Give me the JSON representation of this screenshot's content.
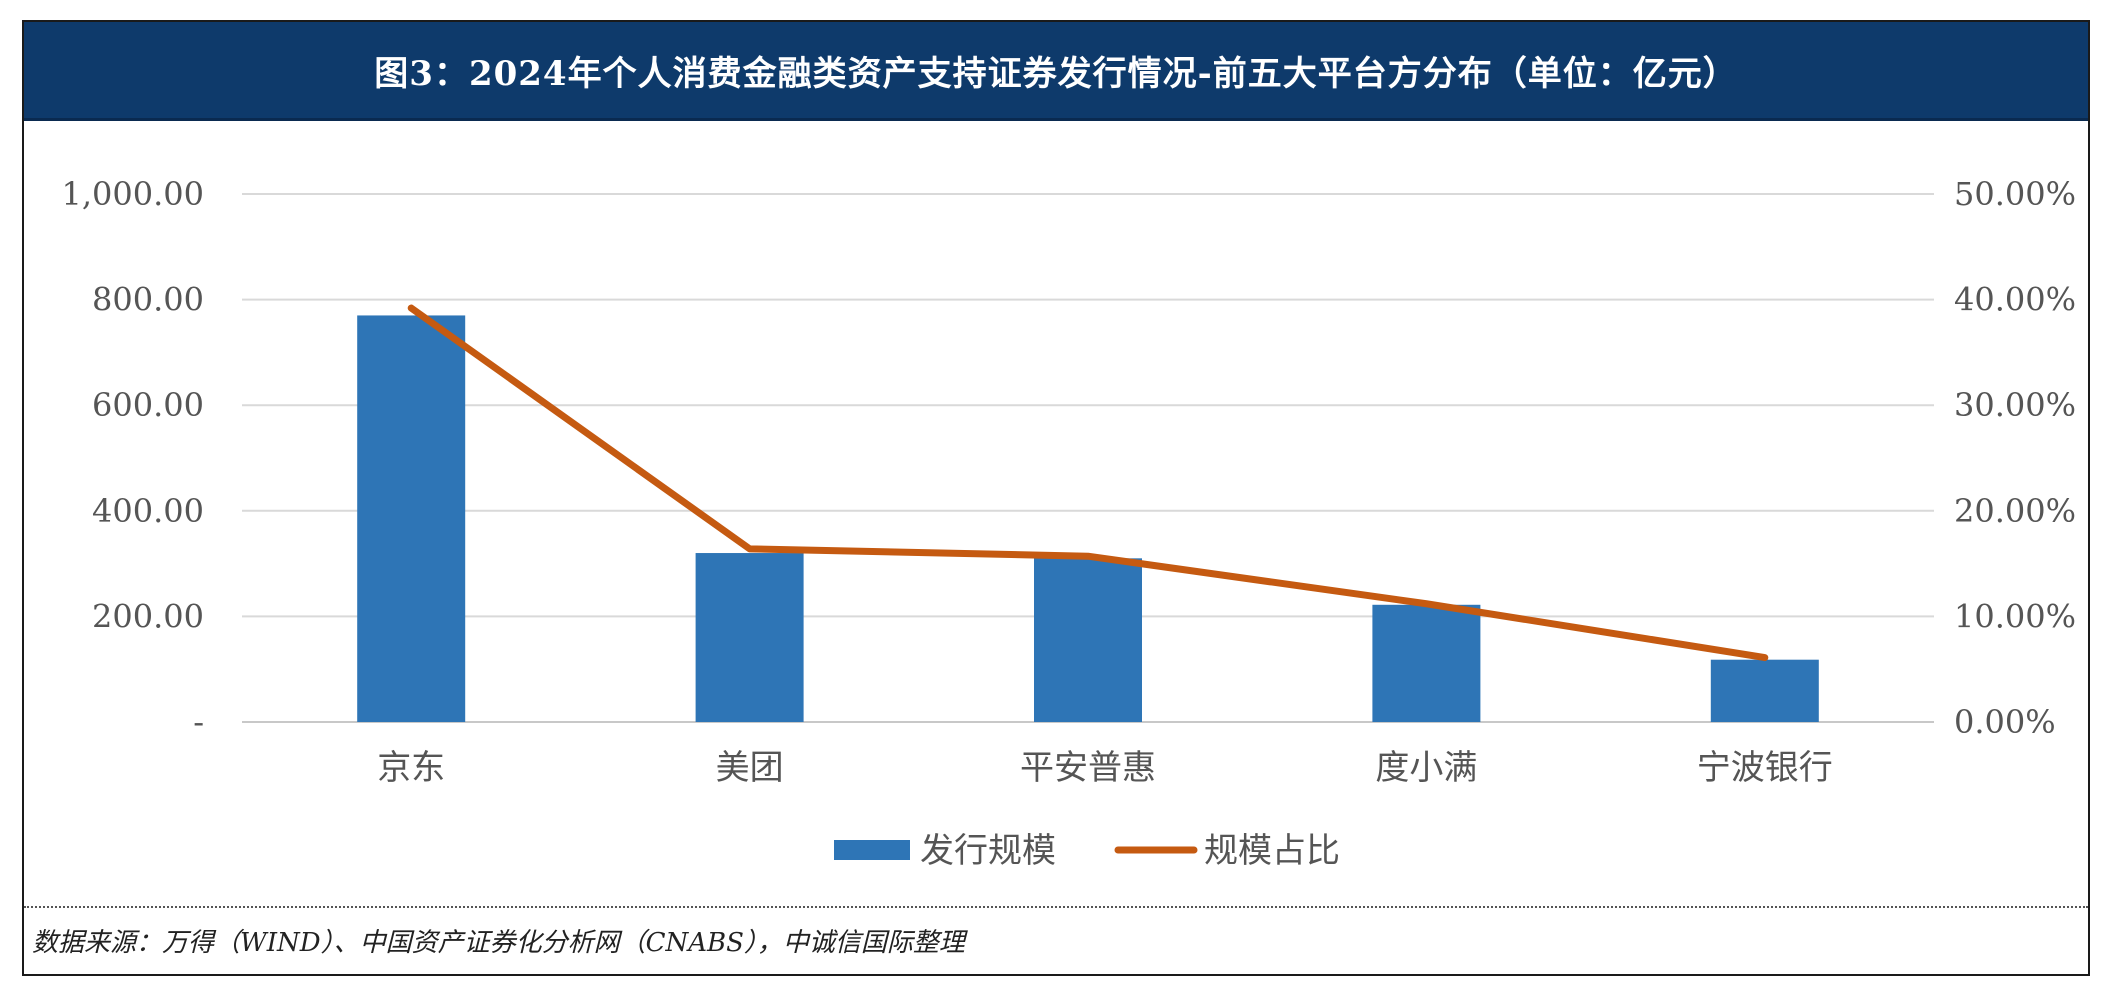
{
  "header": {
    "title": "图3：2024年个人消费金融类资产支持证券发行情况-前五大平台方分布（单位：亿元）"
  },
  "source": {
    "text": "数据来源：万得（WIND）、中国资产证券化分析网（CNABS），中诚信国际整理"
  },
  "chart_data": {
    "type": "bar",
    "categories": [
      "京东",
      "美团",
      "平安普惠",
      "度小满",
      "宁波银行"
    ],
    "series": [
      {
        "name": "发行规模",
        "type": "bar",
        "axis": "left",
        "color": "#2e75b6",
        "values": [
          770,
          320,
          310,
          222,
          118
        ]
      },
      {
        "name": "规模占比",
        "type": "line",
        "axis": "right",
        "color": "#c55a11",
        "values": [
          0.392,
          0.164,
          0.157,
          0.112,
          0.061
        ]
      }
    ],
    "y_left": {
      "min": 0,
      "max": 1000,
      "ticks": [
        0,
        200,
        400,
        600,
        800,
        1000
      ],
      "tick_labels": [
        "-",
        "200.00",
        "400.00",
        "600.00",
        "800.00",
        "1,000.00"
      ]
    },
    "y_right": {
      "min": 0,
      "max": 0.5,
      "ticks": [
        0,
        0.1,
        0.2,
        0.3,
        0.4,
        0.5
      ],
      "tick_labels": [
        "0.00%",
        "10.00%",
        "20.00%",
        "30.00%",
        "40.00%",
        "50.00%"
      ]
    },
    "grid": true,
    "legend_position": "bottom-center"
  }
}
